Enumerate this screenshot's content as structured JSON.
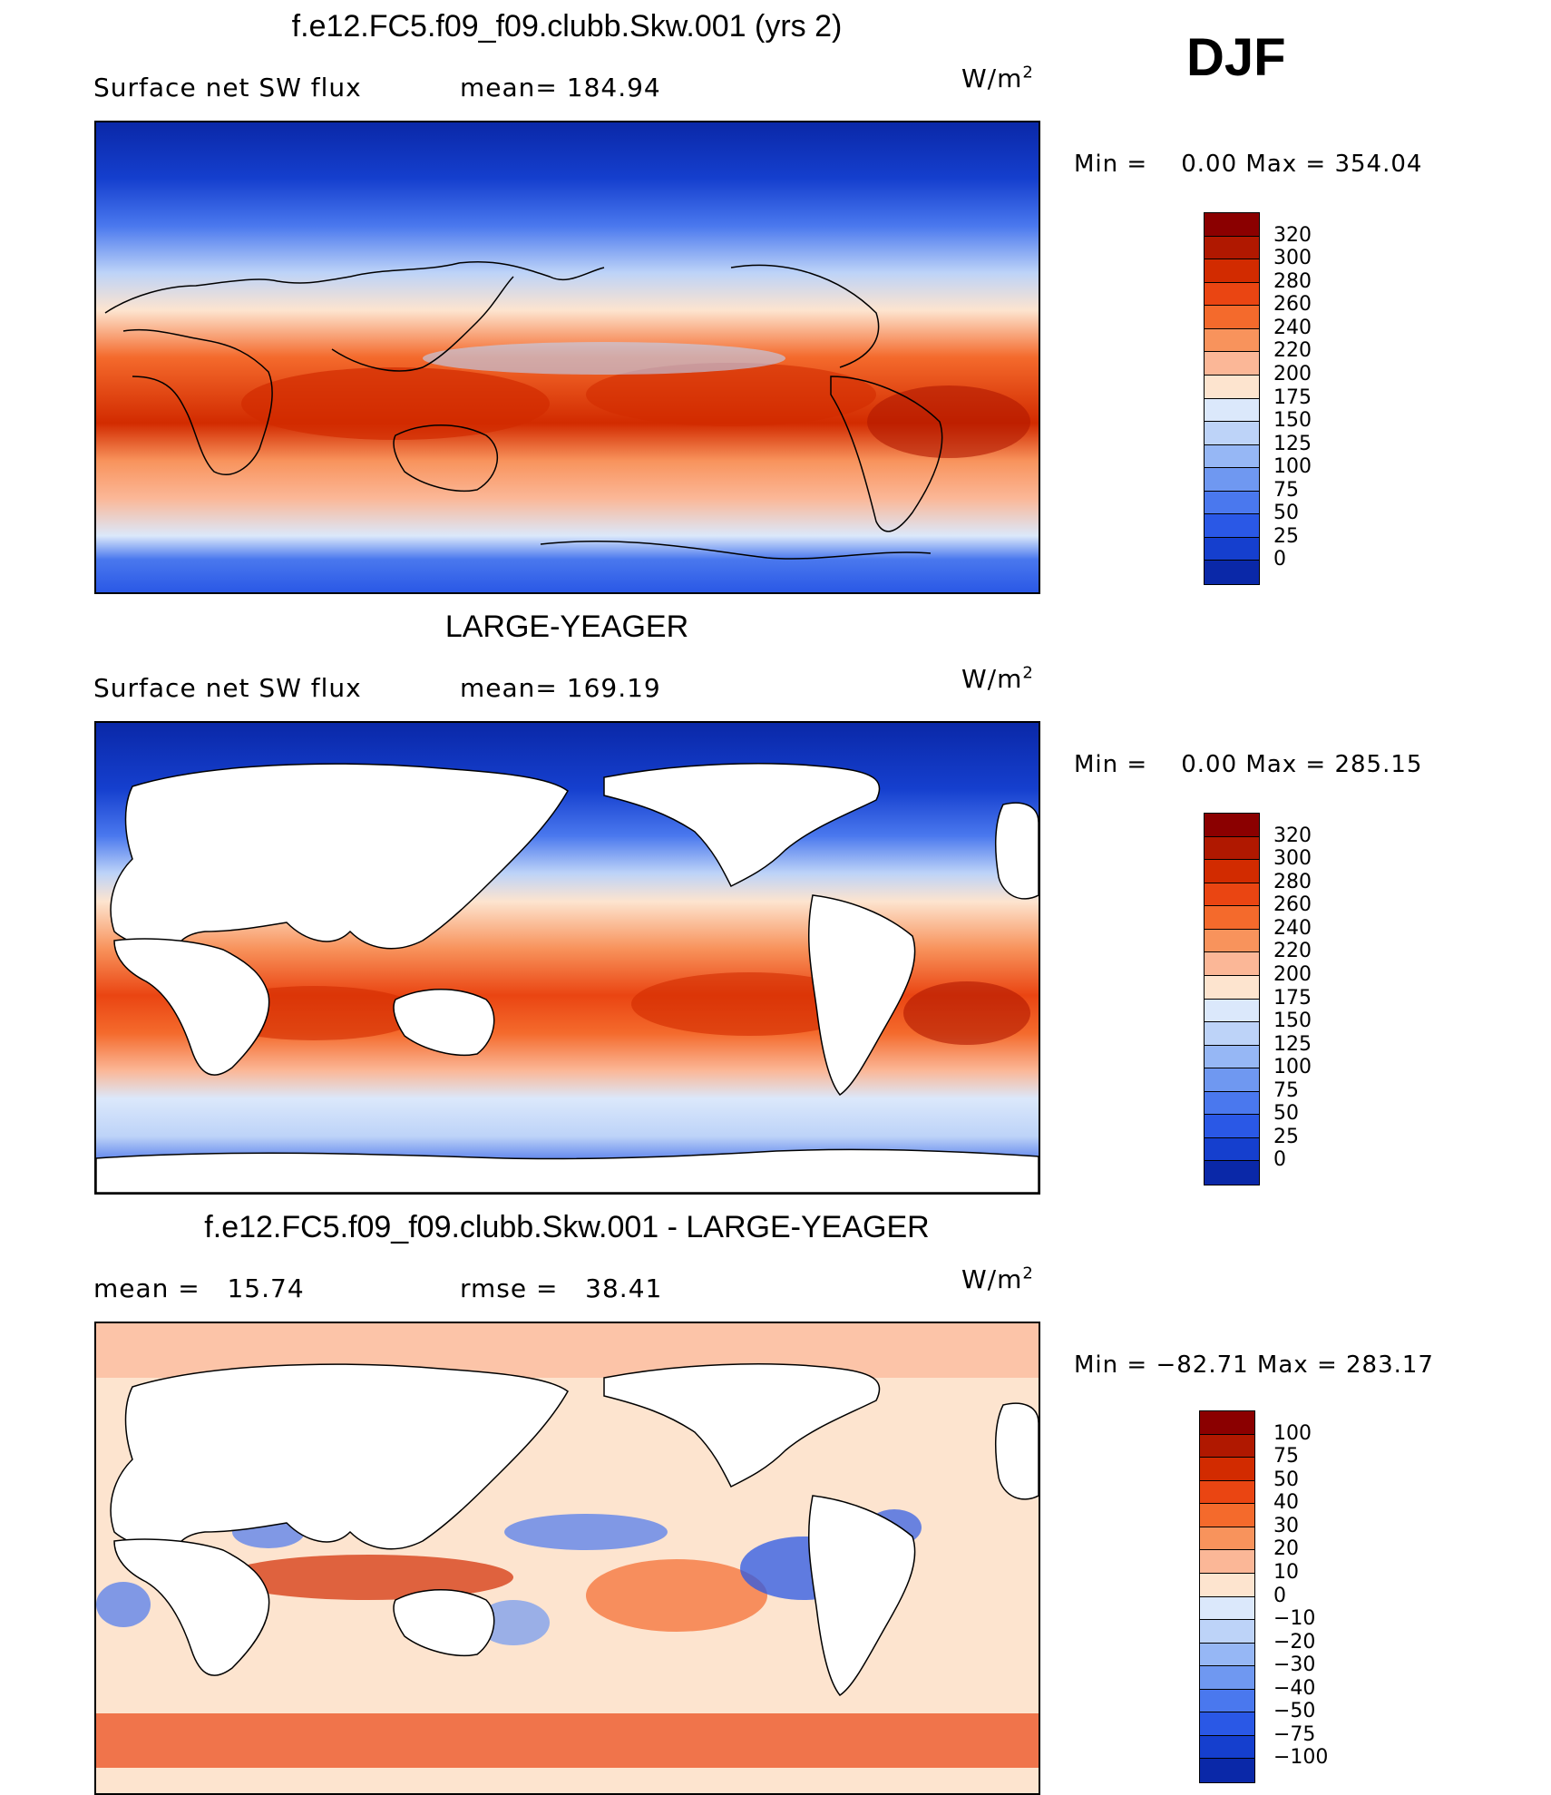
{
  "season": "DJF",
  "units_base": "W/m",
  "units_exp": "2",
  "panels": [
    {
      "title": "f.e12.FC5.f09_f09.clubb.Skw.001 (yrs 2)",
      "left_text": "Surface net SW flux",
      "right_text": "mean= 184.94",
      "minmax": "Min =    0.00 Max = 354.04",
      "colorbar": {
        "labels": [
          "320",
          "300",
          "280",
          "260",
          "240",
          "220",
          "200",
          "175",
          "150",
          "125",
          "100",
          "75",
          "50",
          "25",
          "0"
        ],
        "colors": [
          "#8b0000",
          "#b01800",
          "#d22b00",
          "#ea4512",
          "#f46a2c",
          "#f8935c",
          "#fbb797",
          "#fde4cf",
          "#dbe8fb",
          "#bdd3f8",
          "#96b7f5",
          "#6f98f1",
          "#4a78ee",
          "#2a58e6",
          "#153fce",
          "#0a28a8"
        ]
      }
    },
    {
      "title": "LARGE-YEAGER",
      "left_text": "Surface net SW flux",
      "right_text": "mean= 169.19",
      "minmax": "Min =    0.00 Max = 285.15",
      "colorbar": {
        "labels": [
          "320",
          "300",
          "280",
          "260",
          "240",
          "220",
          "200",
          "175",
          "150",
          "125",
          "100",
          "75",
          "50",
          "25",
          "0"
        ],
        "colors": [
          "#8b0000",
          "#b01800",
          "#d22b00",
          "#ea4512",
          "#f46a2c",
          "#f8935c",
          "#fbb797",
          "#fde4cf",
          "#dbe8fb",
          "#bdd3f8",
          "#96b7f5",
          "#6f98f1",
          "#4a78ee",
          "#2a58e6",
          "#153fce",
          "#0a28a8"
        ]
      }
    },
    {
      "title": "f.e12.FC5.f09_f09.clubb.Skw.001 - LARGE-YEAGER",
      "left_text": "mean =   15.74",
      "right_text": "rmse =   38.41",
      "minmax": "Min = −82.71 Max = 283.17",
      "colorbar": {
        "labels": [
          "100",
          "75",
          "50",
          "40",
          "30",
          "20",
          "10",
          "0",
          "−10",
          "−20",
          "−30",
          "−40",
          "−50",
          "−75",
          "−100"
        ],
        "colors": [
          "#8b0000",
          "#b01800",
          "#d22b00",
          "#ea4512",
          "#f46a2c",
          "#f8935c",
          "#fbb797",
          "#fde4cf",
          "#dbe8fb",
          "#bdd3f8",
          "#96b7f5",
          "#6f98f1",
          "#4a78ee",
          "#2a58e6",
          "#153fce",
          "#0a28a8"
        ]
      }
    }
  ]
}
